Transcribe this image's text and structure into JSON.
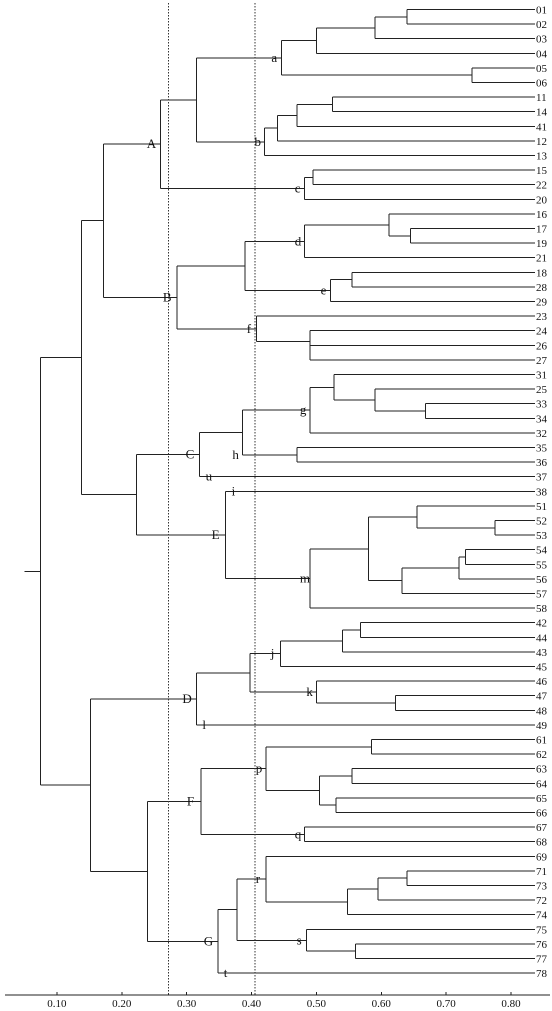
{
  "chart_data": {
    "type": "dendrogram",
    "x_ticks": [
      0.1,
      0.2,
      0.3,
      0.4,
      0.5,
      0.6,
      0.7,
      0.8
    ],
    "x_tick_labels": [
      "0.10",
      "0.20",
      "0.30",
      "0.40",
      "0.50",
      "0.60",
      "0.70",
      "0.80"
    ],
    "xlim": [
      0.02,
      0.837
    ],
    "cut_lines": [
      0.272,
      0.405
    ],
    "leaves": [
      "01",
      "02",
      "03",
      "04",
      "05",
      "06",
      "11",
      "14",
      "41",
      "12",
      "13",
      "15",
      "22",
      "20",
      "16",
      "17",
      "19",
      "21",
      "18",
      "28",
      "29",
      "23",
      "24",
      "26",
      "27",
      "31",
      "25",
      "33",
      "34",
      "32",
      "35",
      "36",
      "37",
      "38",
      "51",
      "52",
      "53",
      "54",
      "55",
      "56",
      "57",
      "58",
      "42",
      "44",
      "43",
      "45",
      "46",
      "47",
      "48",
      "49",
      "61",
      "62",
      "63",
      "64",
      "65",
      "66",
      "67",
      "68",
      "69",
      "71",
      "73",
      "72",
      "74",
      "75",
      "76",
      "77",
      "78"
    ],
    "cluster_labels": [
      {
        "text": "A",
        "merge": "A"
      },
      {
        "text": "B",
        "merge": "B"
      },
      {
        "text": "C",
        "merge": "C"
      },
      {
        "text": "E",
        "merge": "E"
      },
      {
        "text": "D",
        "merge": "D"
      },
      {
        "text": "F",
        "merge": "F"
      },
      {
        "text": "G",
        "merge": "G"
      },
      {
        "text": "a",
        "merge": "a"
      },
      {
        "text": "b",
        "merge": "b"
      },
      {
        "text": "c",
        "merge": "c"
      },
      {
        "text": "d",
        "merge": "d"
      },
      {
        "text": "e",
        "merge": "e"
      },
      {
        "text": "f",
        "merge": "f"
      },
      {
        "text": "g",
        "merge": "g"
      },
      {
        "text": "h",
        "merge": "h"
      },
      {
        "text": "u",
        "leaf": "37"
      },
      {
        "text": "i",
        "leaf": "38"
      },
      {
        "text": "m",
        "merge": "m"
      },
      {
        "text": "j",
        "merge": "j"
      },
      {
        "text": "k",
        "merge": "k"
      },
      {
        "text": "l",
        "leaf": "49"
      },
      {
        "text": "p",
        "merge": "p"
      },
      {
        "text": "q",
        "merge": "q"
      },
      {
        "text": "r",
        "merge": "r"
      },
      {
        "text": "s",
        "merge": "s"
      },
      {
        "text": "t",
        "leaf": "78"
      }
    ],
    "merges": [
      {
        "id": "m0102",
        "children": [
          "01",
          "02"
        ],
        "height": 0.64
      },
      {
        "id": "m010203",
        "children": [
          "m0102",
          "03"
        ],
        "height": 0.59
      },
      {
        "id": "m01020304",
        "children": [
          "m010203",
          "04"
        ],
        "height": 0.5
      },
      {
        "id": "m0506",
        "children": [
          "05",
          "06"
        ],
        "height": 0.74
      },
      {
        "id": "a",
        "children": [
          "m01020304",
          "m0506"
        ],
        "height": 0.446
      },
      {
        "id": "m1114",
        "children": [
          "11",
          "14"
        ],
        "height": 0.525
      },
      {
        "id": "m111441",
        "children": [
          "m1114",
          "41"
        ],
        "height": 0.47
      },
      {
        "id": "m11144112",
        "children": [
          "m111441",
          "12"
        ],
        "height": 0.44
      },
      {
        "id": "b",
        "children": [
          "m11144112",
          "13"
        ],
        "height": 0.42
      },
      {
        "id": "ab",
        "children": [
          "a",
          "b"
        ],
        "height": 0.315
      },
      {
        "id": "m1522",
        "children": [
          "15",
          "22"
        ],
        "height": 0.495
      },
      {
        "id": "c",
        "children": [
          "m1522",
          "20"
        ],
        "height": 0.482
      },
      {
        "id": "A",
        "children": [
          "ab",
          "c"
        ],
        "height": 0.26
      },
      {
        "id": "m1719",
        "children": [
          "17",
          "19"
        ],
        "height": 0.645
      },
      {
        "id": "m161719",
        "children": [
          "16",
          "m1719"
        ],
        "height": 0.612
      },
      {
        "id": "d",
        "children": [
          "m161719",
          "21"
        ],
        "height": 0.482
      },
      {
        "id": "m1828",
        "children": [
          "18",
          "28"
        ],
        "height": 0.555
      },
      {
        "id": "e",
        "children": [
          "m1828",
          "29"
        ],
        "height": 0.522
      },
      {
        "id": "de",
        "children": [
          "d",
          "e"
        ],
        "height": 0.39
      },
      {
        "id": "m2627",
        "children": [
          "26",
          "27"
        ],
        "height": 0.49
      },
      {
        "id": "m242627",
        "children": [
          "24",
          "m2627"
        ],
        "height": 0.49
      },
      {
        "id": "f",
        "children": [
          "23",
          "m242627"
        ],
        "height": 0.408
      },
      {
        "id": "B",
        "children": [
          "de",
          "f"
        ],
        "height": 0.285
      },
      {
        "id": "AB",
        "children": [
          "A",
          "B"
        ],
        "height": 0.172
      },
      {
        "id": "m3334",
        "children": [
          "33",
          "34"
        ],
        "height": 0.668
      },
      {
        "id": "m253334",
        "children": [
          "25",
          "m3334"
        ],
        "height": 0.59
      },
      {
        "id": "m31253334",
        "children": [
          "31",
          "m253334"
        ],
        "height": 0.527
      },
      {
        "id": "g",
        "children": [
          "m31253334",
          "32"
        ],
        "height": 0.49
      },
      {
        "id": "m3536",
        "children": [
          "35",
          "36"
        ],
        "height": 0.47
      },
      {
        "id": "h",
        "children": [
          "m3536"
        ],
        "height": 0.386
      },
      {
        "id": "gh",
        "children": [
          "g",
          "h"
        ],
        "height": 0.386
      },
      {
        "id": "C",
        "children": [
          "gh",
          "37"
        ],
        "height": 0.32
      },
      {
        "id": "m5253",
        "children": [
          "52",
          "53"
        ],
        "height": 0.775
      },
      {
        "id": "m515253",
        "children": [
          "51",
          "m5253"
        ],
        "height": 0.655
      },
      {
        "id": "m5455",
        "children": [
          "54",
          "55"
        ],
        "height": 0.73
      },
      {
        "id": "m545556",
        "children": [
          "m5455",
          "56"
        ],
        "height": 0.72
      },
      {
        "id": "m54555657",
        "children": [
          "m545556",
          "57"
        ],
        "height": 0.632
      },
      {
        "id": "m51to57",
        "children": [
          "m515253",
          "m54555657"
        ],
        "height": 0.58
      },
      {
        "id": "m",
        "children": [
          "m51to57",
          "58"
        ],
        "height": 0.49
      },
      {
        "id": "E",
        "children": [
          "38",
          "m"
        ],
        "height": 0.36
      },
      {
        "id": "CE",
        "children": [
          "C",
          "E"
        ],
        "height": 0.223
      },
      {
        "id": "ABCE",
        "children": [
          "AB",
          "CE"
        ],
        "height": 0.138
      },
      {
        "id": "m4244",
        "children": [
          "42",
          "44"
        ],
        "height": 0.568
      },
      {
        "id": "m424443",
        "children": [
          "m4244",
          "43"
        ],
        "height": 0.54
      },
      {
        "id": "j",
        "children": [
          "m424443",
          "45"
        ],
        "height": 0.445
      },
      {
        "id": "m4748",
        "children": [
          "47",
          "48"
        ],
        "height": 0.622
      },
      {
        "id": "k",
        "children": [
          "46",
          "m4748"
        ],
        "height": 0.5
      },
      {
        "id": "jk",
        "children": [
          "j",
          "k"
        ],
        "height": 0.398
      },
      {
        "id": "D",
        "children": [
          "jk",
          "49"
        ],
        "height": 0.315
      },
      {
        "id": "m6162",
        "children": [
          "61",
          "62"
        ],
        "height": 0.585
      },
      {
        "id": "m6364",
        "children": [
          "63",
          "64"
        ],
        "height": 0.555
      },
      {
        "id": "m6566",
        "children": [
          "65",
          "66"
        ],
        "height": 0.53
      },
      {
        "id": "m63to66",
        "children": [
          "m6364",
          "m6566"
        ],
        "height": 0.505
      },
      {
        "id": "p",
        "children": [
          "m6162",
          "m63to66"
        ],
        "height": 0.422
      },
      {
        "id": "q",
        "children": [
          "67",
          "68"
        ],
        "height": 0.482
      },
      {
        "id": "F",
        "children": [
          "p",
          "q"
        ],
        "height": 0.322
      },
      {
        "id": "m7173",
        "children": [
          "71",
          "73"
        ],
        "height": 0.64
      },
      {
        "id": "m717372",
        "children": [
          "m7173",
          "72"
        ],
        "height": 0.595
      },
      {
        "id": "m71737274",
        "children": [
          "m717372",
          "74"
        ],
        "height": 0.548
      },
      {
        "id": "r",
        "children": [
          "69",
          "m71737274"
        ],
        "height": 0.422
      },
      {
        "id": "m7677",
        "children": [
          "76",
          "77"
        ],
        "height": 0.56
      },
      {
        "id": "s",
        "children": [
          "75",
          "m7677"
        ],
        "height": 0.485
      },
      {
        "id": "rs",
        "children": [
          "r",
          "s"
        ],
        "height": 0.378
      },
      {
        "id": "G",
        "children": [
          "rs",
          "78"
        ],
        "height": 0.348
      },
      {
        "id": "FG",
        "children": [
          "F",
          "G"
        ],
        "height": 0.24
      },
      {
        "id": "DFG",
        "children": [
          "D",
          "FG"
        ],
        "height": 0.152
      },
      {
        "id": "root",
        "children": [
          "ABCE",
          "DFG"
        ],
        "height": 0.075
      }
    ]
  }
}
